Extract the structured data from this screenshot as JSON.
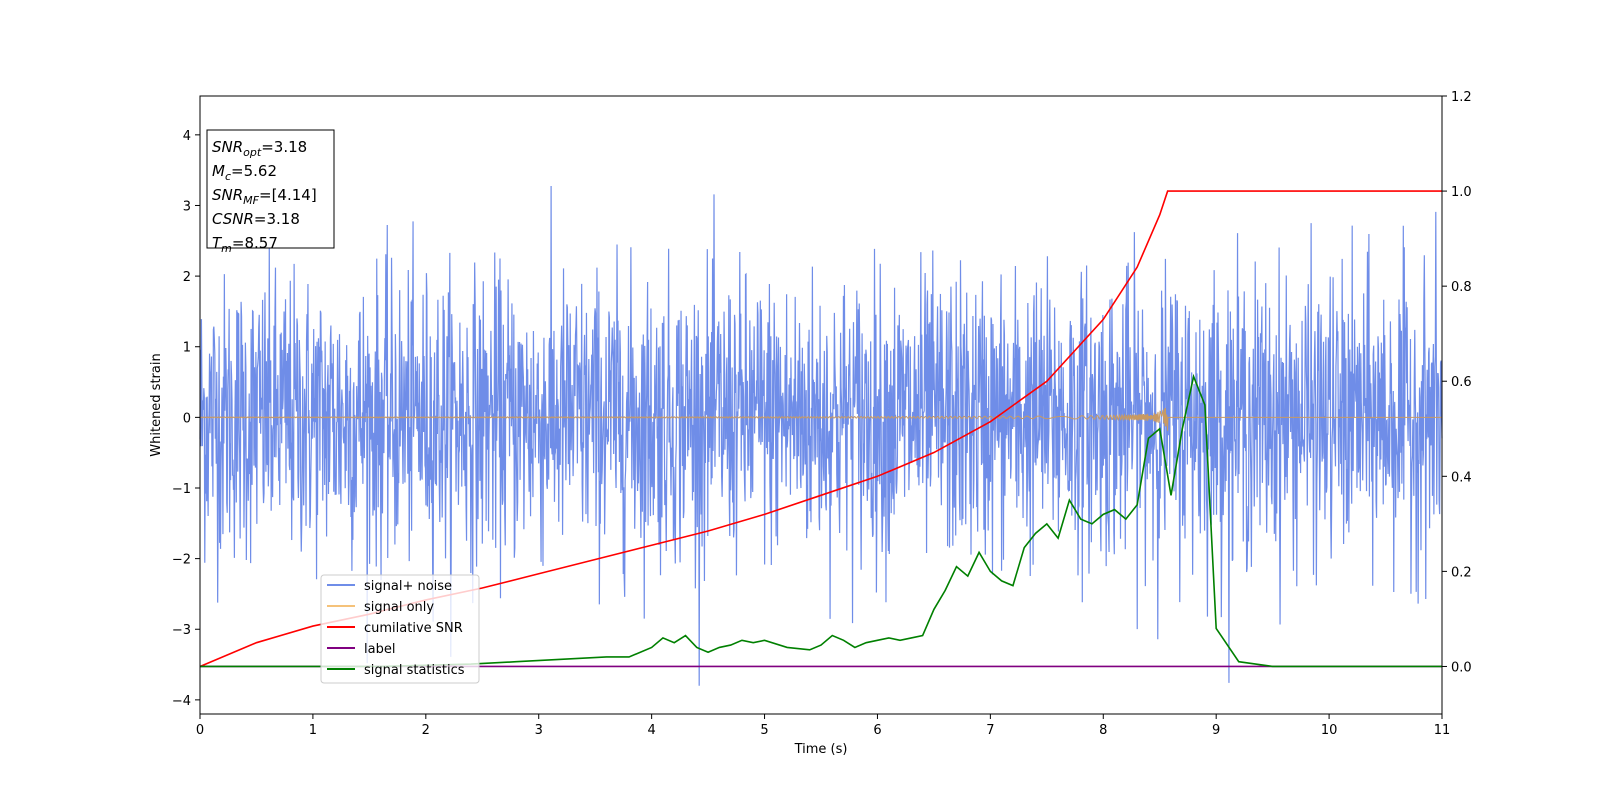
{
  "chart_data": {
    "type": "line",
    "xlabel": "Time (s)",
    "ylabel": "Whitened strain",
    "xlim": [
      0,
      11
    ],
    "ylim_left": [
      -4.2,
      4.55
    ],
    "ylim_right": [
      -0.1,
      1.2
    ],
    "x_ticks": [
      "0",
      "1",
      "2",
      "3",
      "4",
      "5",
      "6",
      "7",
      "8",
      "9",
      "10",
      "11"
    ],
    "y_ticks_left": [
      "4",
      "3",
      "2",
      "1",
      "0",
      "−1",
      "−2",
      "−3",
      "−4"
    ],
    "y_ticks_left_values": [
      4,
      3,
      2,
      1,
      0,
      -1,
      -2,
      -3,
      -4
    ],
    "y_ticks_right": [
      "1.2",
      "1.0",
      "0.8",
      "0.6",
      "0.4",
      "0.2",
      "0.0"
    ],
    "y_ticks_right_values": [
      1.2,
      1.0,
      0.8,
      0.6,
      0.4,
      0.2,
      0.0
    ],
    "info_box": [
      {
        "main": "SNR",
        "sub": "opt",
        "rest": "=3.18"
      },
      {
        "main": "M",
        "sub": "c",
        "rest": "=5.62"
      },
      {
        "main": "SNR",
        "sub": "MF",
        "rest": "=[4.14]"
      },
      {
        "main": "CSNR",
        "sub": "",
        "rest": "=3.18"
      },
      {
        "main": "T",
        "sub": "m",
        "rest": "=8.57"
      }
    ],
    "legend": [
      {
        "label": "signal+ noise",
        "color": "#6f8de8"
      },
      {
        "label": "signal only",
        "color": "#f5c27a"
      },
      {
        "label": "cumilative SNR",
        "color": "#ff0000"
      },
      {
        "label": "label",
        "color": "#800080"
      },
      {
        "label": "signal statistics",
        "color": "#008000"
      }
    ],
    "legend_placement": "lower-left",
    "series": [
      {
        "name": "signal+ noise",
        "axis": "left",
        "color": "#6f8de8",
        "description_type": "noise",
        "std": 1.0,
        "x_range": [
          0,
          11
        ]
      },
      {
        "name": "signal only",
        "axis": "left",
        "color": "#c89a63",
        "x_range": [
          0,
          11
        ],
        "peak_time": 8.57
      },
      {
        "name": "cumilative SNR",
        "axis": "right",
        "color": "#ff0000",
        "x": [
          0,
          0.5,
          1.0,
          1.5,
          2.0,
          2.5,
          3.0,
          3.5,
          4.0,
          4.5,
          5.0,
          5.5,
          6.0,
          6.5,
          7.0,
          7.5,
          8.0,
          8.3,
          8.5,
          8.57,
          11
        ],
        "y": [
          0.0,
          0.05,
          0.085,
          0.11,
          0.14,
          0.165,
          0.195,
          0.225,
          0.255,
          0.285,
          0.32,
          0.36,
          0.4,
          0.45,
          0.515,
          0.6,
          0.73,
          0.84,
          0.95,
          1.0,
          1.0
        ]
      },
      {
        "name": "label",
        "axis": "right",
        "color": "#800080",
        "x": [
          0,
          11
        ],
        "y": [
          0,
          0
        ]
      },
      {
        "name": "signal statistics",
        "axis": "right",
        "color": "#008000",
        "x": [
          0,
          0.8,
          1.6,
          2.4,
          2.8,
          3.2,
          3.6,
          3.8,
          4.0,
          4.1,
          4.2,
          4.3,
          4.4,
          4.5,
          4.6,
          4.7,
          4.8,
          4.9,
          5.0,
          5.2,
          5.4,
          5.5,
          5.6,
          5.7,
          5.8,
          5.9,
          6.0,
          6.1,
          6.2,
          6.3,
          6.4,
          6.5,
          6.6,
          6.7,
          6.8,
          6.9,
          7.0,
          7.1,
          7.2,
          7.3,
          7.4,
          7.5,
          7.6,
          7.7,
          7.8,
          7.9,
          8.0,
          8.1,
          8.2,
          8.3,
          8.4,
          8.5,
          8.6,
          8.7,
          8.8,
          8.9,
          9.0,
          9.2,
          9.5,
          10,
          11
        ],
        "y": [
          0.0,
          0.0,
          0.0,
          0.005,
          0.01,
          0.015,
          0.02,
          0.02,
          0.04,
          0.06,
          0.05,
          0.065,
          0.04,
          0.03,
          0.04,
          0.045,
          0.055,
          0.05,
          0.055,
          0.04,
          0.035,
          0.045,
          0.065,
          0.055,
          0.04,
          0.05,
          0.055,
          0.06,
          0.055,
          0.06,
          0.065,
          0.12,
          0.16,
          0.21,
          0.19,
          0.24,
          0.2,
          0.18,
          0.17,
          0.25,
          0.28,
          0.3,
          0.27,
          0.35,
          0.31,
          0.3,
          0.32,
          0.33,
          0.31,
          0.34,
          0.48,
          0.5,
          0.36,
          0.5,
          0.61,
          0.55,
          0.08,
          0.01,
          0.0,
          0.0,
          0.0
        ]
      }
    ]
  }
}
